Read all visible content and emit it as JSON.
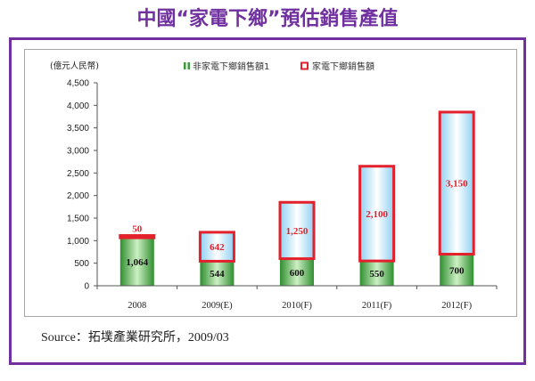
{
  "colors": {
    "accent": "#7030a0"
  },
  "source": "Source：拓墣產業研究所，2009/03",
  "chart_data": {
    "type": "bar",
    "stacked": true,
    "title": "中國“家電下鄉”預估銷售產值",
    "ylabel": "(億元人民幣)",
    "xlabel": "",
    "categories": [
      "2008",
      "2009(E)",
      "2010(F)",
      "2011(F)",
      "2012(F)"
    ],
    "series": [
      {
        "name": "非家電下鄉銷售額1",
        "values": [
          1064,
          544,
          600,
          550,
          700
        ],
        "color": "#3c9a3c"
      },
      {
        "name": "家電下鄉銷售額",
        "values": [
          50,
          642,
          1250,
          2100,
          3150
        ],
        "color": "#e3202b"
      }
    ],
    "ylim": [
      0,
      4500
    ],
    "yticks": [
      0,
      500,
      1000,
      1500,
      2000,
      2500,
      3000,
      3500,
      4000,
      4500
    ],
    "grid": false,
    "legend_position": "top"
  }
}
